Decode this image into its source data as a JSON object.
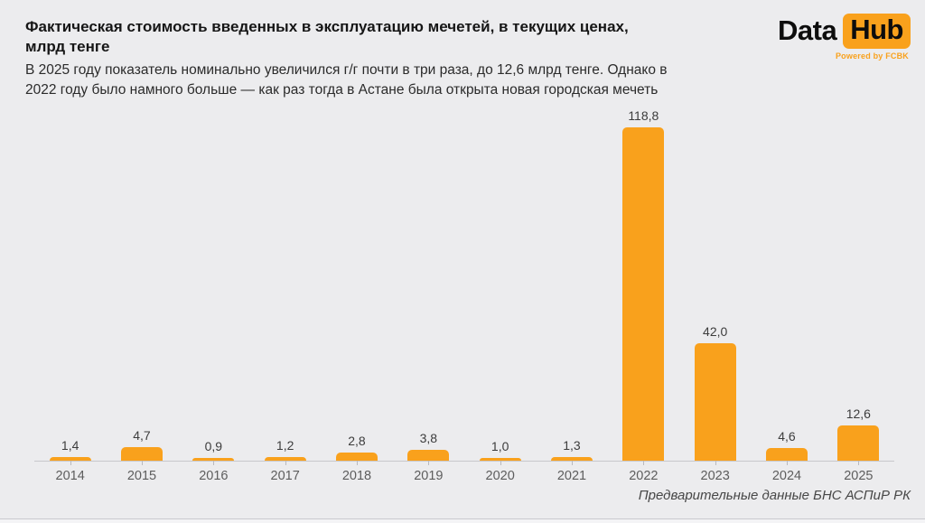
{
  "header": {
    "title": "Фактическая стоимость введенных в эксплуатацию мечетей, в текущих ценах,\nмлрд тенге",
    "subtitle": "В 2025 году показатель номинально увеличился г/г почти в три раза, до 12,6 млрд тенге. Однако в\n2022 году было намного больше — как раз тогда в Астане была открыта новая городская мечеть"
  },
  "logo": {
    "part1": "Data",
    "part2": "Hub",
    "tagline": "Powered by FCBK"
  },
  "footer": {
    "source": "Предварительные данные БНС АСПиР РК"
  },
  "colors": {
    "accent": "#f9a11c",
    "background": "#ececee",
    "title_text": "#161616",
    "axis_line": "#c7c7cb",
    "value_label_text": "#3c3c3c",
    "year_label_text": "#5d5d5d"
  },
  "chart_data": {
    "type": "bar",
    "title": "Фактическая стоимость введенных в эксплуатацию мечетей, в текущих ценах, млрд тенге",
    "categories": [
      "2014",
      "2015",
      "2016",
      "2017",
      "2018",
      "2019",
      "2020",
      "2021",
      "2022",
      "2023",
      "2024",
      "2025"
    ],
    "values": [
      1.4,
      4.7,
      0.9,
      1.2,
      2.8,
      3.8,
      1.0,
      1.3,
      118.8,
      42.0,
      4.6,
      12.6
    ],
    "value_labels": [
      "1,4",
      "4,7",
      "0,9",
      "1,2",
      "2,8",
      "3,8",
      "1,0",
      "1,3",
      "118,8",
      "42,0",
      "4,6",
      "12,6"
    ],
    "xlabel": "",
    "ylabel": "млрд тенге",
    "ylim": [
      0,
      125
    ],
    "grid": false,
    "legend": false,
    "bar_color": "#f9a11c"
  }
}
